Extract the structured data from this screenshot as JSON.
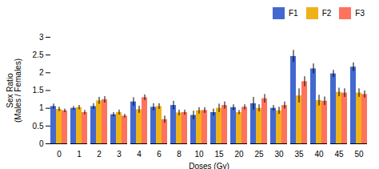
{
  "chart_data": {
    "type": "bar",
    "xlabel": "Doses (Gy)",
    "ylabel": "Sex Ratio\n(Males / Females)",
    "categories": [
      "0",
      "1",
      "2",
      "3",
      "4",
      "6",
      "8",
      "10",
      "15",
      "20",
      "25",
      "30",
      "35",
      "40",
      "45",
      "50"
    ],
    "series": [
      {
        "name": "F1",
        "values": [
          1.05,
          1.0,
          1.05,
          0.82,
          1.18,
          1.03,
          1.08,
          0.8,
          0.88,
          1.02,
          1.13,
          1.0,
          2.46,
          2.11,
          1.97,
          2.16
        ],
        "errors": [
          0.07,
          0.05,
          0.08,
          0.06,
          0.12,
          0.1,
          0.12,
          0.12,
          0.1,
          0.08,
          0.18,
          0.08,
          0.17,
          0.14,
          0.1,
          0.12
        ]
      },
      {
        "name": "F2",
        "values": [
          0.97,
          1.02,
          1.21,
          0.88,
          0.96,
          1.05,
          0.87,
          0.93,
          1.0,
          0.88,
          1.0,
          0.93,
          1.35,
          1.22,
          1.45,
          1.43
        ],
        "errors": [
          0.06,
          0.06,
          0.1,
          0.07,
          0.1,
          0.08,
          0.08,
          0.09,
          0.12,
          0.06,
          0.1,
          0.1,
          0.2,
          0.15,
          0.12,
          0.12
        ]
      },
      {
        "name": "F3",
        "values": [
          0.93,
          0.88,
          1.24,
          0.78,
          1.3,
          0.68,
          0.88,
          0.94,
          1.08,
          1.03,
          1.27,
          1.08,
          1.75,
          1.2,
          1.43,
          1.39
        ],
        "errors": [
          0.05,
          0.06,
          0.09,
          0.05,
          0.08,
          0.1,
          0.07,
          0.08,
          0.1,
          0.07,
          0.12,
          0.1,
          0.14,
          0.12,
          0.12,
          0.1
        ]
      }
    ],
    "ylim": [
      0,
      3.0
    ],
    "yticks": [
      0,
      0.5,
      1,
      1.5,
      2,
      2.5,
      3
    ],
    "grid": false,
    "legend": "upper right"
  }
}
